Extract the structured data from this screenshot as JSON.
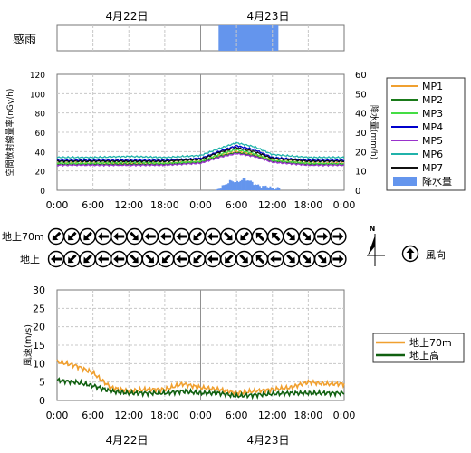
{
  "colors": {
    "MP1": "#f0a030",
    "MP2": "#1a7a1a",
    "MP3": "#44dd44",
    "MP4": "#0000cc",
    "MP5": "#9932cc",
    "MP6": "#20b2aa",
    "MP7": "#111111",
    "rain": "#6495ed",
    "wind70": "#f0a030",
    "windG": "#106010",
    "grid": "#c8c8c8",
    "divider": "#909090"
  },
  "dates": [
    "4月22日",
    "4月23日"
  ],
  "rain_sense": {
    "label": "感雨",
    "active_start_hour": 27,
    "active_end_hour": 37
  },
  "time_ticks": [
    "0:00",
    "6:00",
    "12:00",
    "18:00",
    "0:00",
    "6:00",
    "12:00",
    "18:00",
    "0:00"
  ],
  "dose_chart": {
    "type": "line",
    "ylabel": "空間放射線量率(nGy/h)",
    "ylabel2": "降水量(mm/h)",
    "ylim": [
      0,
      120
    ],
    "y2lim": [
      0,
      60
    ],
    "yticks": [
      "0",
      "20",
      "40",
      "60",
      "80",
      "100",
      "120"
    ],
    "y2ticks": [
      "0",
      "10",
      "20",
      "30",
      "40",
      "50",
      "60"
    ],
    "legend": [
      "MP1",
      "MP2",
      "MP3",
      "MP4",
      "MP5",
      "MP6",
      "MP7",
      "降水量"
    ]
  },
  "wind_dir": {
    "row_labels": [
      "地上70m",
      "地上"
    ],
    "legend_label": "風向",
    "north": "N",
    "dir70": [
      225,
      225,
      225,
      270,
      270,
      135,
      270,
      270,
      270,
      225,
      270,
      135,
      225,
      315,
      315,
      135,
      135,
      90,
      90
    ],
    "dirG": [
      270,
      225,
      225,
      270,
      270,
      135,
      135,
      225,
      270,
      225,
      270,
      225,
      135,
      315,
      270,
      135,
      135,
      135,
      90
    ]
  },
  "wind_chart": {
    "type": "line",
    "ylabel": "風速(m/s)",
    "ylim": [
      0,
      30
    ],
    "yticks": [
      "0",
      "5",
      "10",
      "15",
      "20",
      "25",
      "30"
    ],
    "legend": [
      "地上70m",
      "地上高"
    ]
  },
  "chart_data": [
    {
      "type": "line",
      "title": "",
      "ylabel": "空間放射線量率(nGy/h)",
      "ylabel2": "降水量(mm/h)",
      "ylim": [
        0,
        120
      ],
      "y2lim": [
        0,
        60
      ],
      "x_hours": [
        0,
        6,
        12,
        18,
        24,
        27,
        30,
        33,
        36,
        42,
        48
      ],
      "series": [
        {
          "name": "MP1",
          "values": [
            28,
            28,
            28,
            28,
            30,
            36,
            40,
            37,
            31,
            28,
            28
          ]
        },
        {
          "name": "MP2",
          "values": [
            27,
            27,
            27,
            27,
            29,
            35,
            39,
            36,
            30,
            27,
            27
          ]
        },
        {
          "name": "MP3",
          "values": [
            28,
            28,
            29,
            28,
            30,
            37,
            42,
            38,
            31,
            28,
            27
          ]
        },
        {
          "name": "MP4",
          "values": [
            31,
            31,
            31,
            31,
            33,
            40,
            46,
            42,
            34,
            31,
            31
          ]
        },
        {
          "name": "MP5",
          "values": [
            26,
            26,
            26,
            26,
            28,
            34,
            38,
            35,
            29,
            26,
            26
          ]
        },
        {
          "name": "MP6",
          "values": [
            34,
            34,
            35,
            34,
            36,
            43,
            49,
            45,
            37,
            34,
            34
          ]
        },
        {
          "name": "MP7",
          "values": [
            30,
            30,
            30,
            30,
            32,
            39,
            44,
            40,
            33,
            30,
            30
          ]
        }
      ],
      "rain_hours": [
        27,
        28,
        29,
        30,
        31,
        32,
        33,
        34,
        35,
        36,
        37
      ],
      "rain_values": [
        1,
        3,
        5,
        4,
        6,
        5,
        3,
        2,
        2,
        1,
        1
      ]
    },
    {
      "type": "line",
      "title": "",
      "ylabel": "風速(m/s)",
      "ylim": [
        0,
        30
      ],
      "x_hours": [
        0,
        3,
        6,
        9,
        12,
        15,
        18,
        21,
        24,
        27,
        30,
        33,
        36,
        39,
        42,
        45,
        48
      ],
      "series": [
        {
          "name": "地上70m",
          "values": [
            10.5,
            9.5,
            7.5,
            3.5,
            2.5,
            3,
            3,
            4.5,
            3.5,
            3,
            2,
            2.5,
            3,
            3.5,
            5,
            4.5,
            4.5
          ]
        },
        {
          "name": "地上高",
          "values": [
            5.5,
            5,
            4,
            2.5,
            2,
            2,
            2,
            2.5,
            2,
            2,
            1.2,
            1.5,
            1.8,
            2,
            2,
            2,
            2
          ]
        }
      ]
    }
  ]
}
